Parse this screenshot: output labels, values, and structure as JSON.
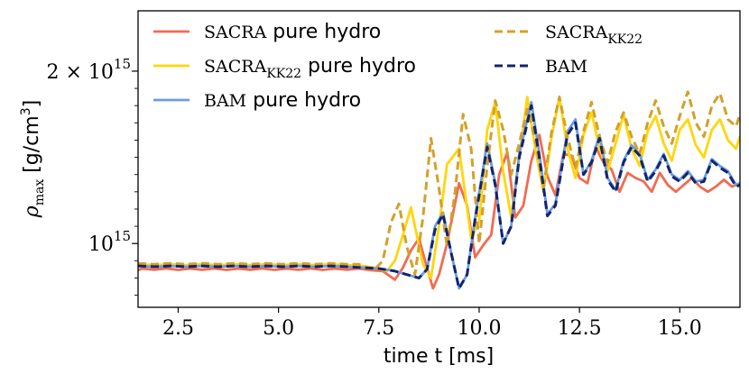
{
  "chart_data": {
    "type": "line",
    "xlabel": "time t [ms]",
    "ylabel": "ρmax [g/cm3]",
    "xlim": [
      1.5,
      16.5
    ],
    "ylim": [
      0.63,
      2.35
    ],
    "x_ticks": [
      {
        "value": 2.5,
        "label": "2.5"
      },
      {
        "value": 5.0,
        "label": "5.0"
      },
      {
        "value": 7.5,
        "label": "7.5"
      },
      {
        "value": 10.0,
        "label": "10.0"
      },
      {
        "value": 12.5,
        "label": "12.5"
      },
      {
        "value": 15.0,
        "label": "15.0"
      }
    ],
    "y_ticks": [
      {
        "value": 1.0,
        "base": "10",
        "exp": "15"
      },
      {
        "value": 2.0,
        "base": "2 × 10",
        "exp": "15"
      }
    ],
    "y_scale_unit": "10^15 g/cm^3",
    "grid": false,
    "legend_position": "top",
    "series": [
      {
        "name": "SACRA pure hydro",
        "style": "solid",
        "color": "#f26b50",
        "x": [
          1.5,
          1.6,
          1.9,
          2.2,
          2.5,
          2.8,
          3.1,
          3.4,
          3.7,
          4.0,
          4.3,
          4.6,
          4.9,
          5.2,
          5.5,
          5.8,
          6.1,
          6.4,
          6.7,
          7.0,
          7.3,
          7.6,
          7.9,
          8.1,
          8.3,
          8.5,
          8.7,
          8.85,
          9.0,
          9.2,
          9.5,
          9.7,
          9.9,
          10.1,
          10.3,
          10.5,
          10.7,
          10.9,
          11.1,
          11.3,
          11.5,
          11.7,
          11.9,
          12.1,
          12.3,
          12.5,
          12.7,
          12.9,
          13.1,
          13.3,
          13.5,
          13.7,
          13.9,
          14.1,
          14.3,
          14.5,
          14.7,
          14.9,
          15.1,
          15.3,
          15.5,
          15.7,
          15.9,
          16.1,
          16.3,
          16.5
        ],
        "y": [
          0.845,
          0.855,
          0.848,
          0.856,
          0.847,
          0.855,
          0.848,
          0.856,
          0.847,
          0.855,
          0.848,
          0.856,
          0.847,
          0.855,
          0.848,
          0.856,
          0.847,
          0.855,
          0.848,
          0.855,
          0.845,
          0.84,
          0.79,
          0.86,
          0.96,
          1.03,
          0.86,
          0.74,
          0.82,
          1.0,
          1.35,
          1.22,
          0.92,
          0.99,
          1.05,
          1.4,
          1.53,
          1.15,
          1.22,
          1.48,
          1.63,
          1.39,
          1.28,
          1.52,
          1.51,
          1.38,
          1.35,
          1.56,
          1.47,
          1.43,
          1.3,
          1.41,
          1.38,
          1.36,
          1.3,
          1.41,
          1.34,
          1.3,
          1.34,
          1.38,
          1.33,
          1.3,
          1.33,
          1.37,
          1.33,
          1.35
        ]
      },
      {
        "name": "SACRA_KK22 pure hydro",
        "style": "solid",
        "color": "#ffd60a",
        "x": [
          1.5,
          1.9,
          2.3,
          2.7,
          3.1,
          3.5,
          3.9,
          4.3,
          4.7,
          5.1,
          5.5,
          5.9,
          6.3,
          6.7,
          7.1,
          7.4,
          7.7,
          7.9,
          8.1,
          8.3,
          8.6,
          8.8,
          9.0,
          9.2,
          9.5,
          9.8,
          10.0,
          10.2,
          10.4,
          10.6,
          10.8,
          11.0,
          11.2,
          11.4,
          11.6,
          11.8,
          12.0,
          12.2,
          12.4,
          12.6,
          12.8,
          13.0,
          13.2,
          13.4,
          13.6,
          13.8,
          14.0,
          14.2,
          14.4,
          14.6,
          14.8,
          15.0,
          15.2,
          15.4,
          15.6,
          15.8,
          16.0,
          16.2,
          16.4,
          16.5
        ],
        "y": [
          0.88,
          0.875,
          0.88,
          0.875,
          0.88,
          0.875,
          0.88,
          0.875,
          0.88,
          0.875,
          0.88,
          0.875,
          0.88,
          0.875,
          0.87,
          0.86,
          0.84,
          0.9,
          1.05,
          1.21,
          0.88,
          0.8,
          1.1,
          1.46,
          1.55,
          1.03,
          1.13,
          1.66,
          1.82,
          1.42,
          1.15,
          1.5,
          1.85,
          1.55,
          1.3,
          1.61,
          1.85,
          1.55,
          1.38,
          1.63,
          1.76,
          1.55,
          1.42,
          1.58,
          1.75,
          1.55,
          1.45,
          1.65,
          1.74,
          1.58,
          1.48,
          1.66,
          1.72,
          1.57,
          1.5,
          1.66,
          1.72,
          1.6,
          1.55,
          1.62
        ]
      },
      {
        "name": "BAM pure hydro",
        "style": "solid",
        "color": "#6b9ce5",
        "x": [
          1.5,
          1.9,
          2.3,
          2.7,
          3.1,
          3.5,
          3.9,
          4.3,
          4.7,
          5.1,
          5.5,
          5.9,
          6.3,
          6.7,
          7.1,
          7.5,
          7.9,
          8.2,
          8.5,
          8.7,
          8.9,
          9.1,
          9.3,
          9.5,
          9.7,
          9.9,
          10.2,
          10.4,
          10.6,
          10.8,
          11.0,
          11.3,
          11.5,
          11.7,
          11.9,
          12.2,
          12.4,
          12.6,
          12.8,
          13.0,
          13.2,
          13.4,
          13.6,
          13.8,
          14.0,
          14.2,
          14.4,
          14.6,
          14.8,
          15.0,
          15.2,
          15.4,
          15.6,
          15.8,
          16.0,
          16.2,
          16.4,
          16.5
        ],
        "y": [
          0.87,
          0.865,
          0.87,
          0.865,
          0.87,
          0.865,
          0.87,
          0.865,
          0.87,
          0.865,
          0.87,
          0.865,
          0.87,
          0.865,
          0.86,
          0.855,
          0.84,
          0.82,
          0.8,
          0.85,
          1.1,
          1.18,
          0.95,
          0.74,
          0.82,
          1.15,
          1.58,
          1.35,
          1.0,
          1.1,
          1.52,
          1.82,
          1.52,
          1.17,
          1.23,
          1.65,
          1.72,
          1.4,
          1.48,
          1.63,
          1.38,
          1.31,
          1.48,
          1.57,
          1.52,
          1.37,
          1.43,
          1.52,
          1.4,
          1.37,
          1.42,
          1.36,
          1.37,
          1.49,
          1.45,
          1.42,
          1.34,
          1.35
        ]
      },
      {
        "name": "SACRA_KK22",
        "style": "dashed",
        "color": "#d4a02a",
        "x": [
          1.5,
          1.9,
          2.3,
          2.7,
          3.1,
          3.5,
          3.9,
          4.3,
          4.7,
          5.1,
          5.5,
          5.9,
          6.3,
          6.7,
          7.0,
          7.2,
          7.4,
          7.6,
          7.8,
          8.0,
          8.2,
          8.4,
          8.6,
          8.8,
          9.0,
          9.2,
          9.4,
          9.6,
          9.8,
          10.0,
          10.2,
          10.4,
          10.6,
          10.8,
          11.0,
          11.2,
          11.4,
          11.6,
          11.8,
          12.0,
          12.2,
          12.4,
          12.6,
          12.8,
          13.0,
          13.2,
          13.4,
          13.6,
          13.8,
          14.0,
          14.2,
          14.4,
          14.6,
          14.8,
          15.0,
          15.2,
          15.4,
          15.6,
          15.8,
          16.0,
          16.2,
          16.4,
          16.5
        ],
        "y": [
          0.885,
          0.88,
          0.885,
          0.88,
          0.885,
          0.88,
          0.885,
          0.88,
          0.885,
          0.88,
          0.885,
          0.88,
          0.885,
          0.88,
          0.88,
          0.86,
          0.85,
          0.9,
          1.12,
          1.23,
          0.98,
          0.82,
          1.15,
          1.61,
          1.32,
          0.98,
          1.3,
          1.75,
          1.55,
          1.0,
          1.45,
          1.83,
          1.66,
          1.4,
          1.58,
          1.78,
          1.6,
          1.32,
          1.64,
          1.85,
          1.62,
          1.44,
          1.65,
          1.82,
          1.62,
          1.47,
          1.65,
          1.76,
          1.62,
          1.52,
          1.7,
          1.83,
          1.68,
          1.58,
          1.74,
          1.88,
          1.7,
          1.62,
          1.8,
          1.87,
          1.72,
          1.68,
          1.75
        ]
      },
      {
        "name": "BAM",
        "style": "dashed",
        "color": "#14246b",
        "x": [
          1.5,
          1.9,
          2.3,
          2.7,
          3.1,
          3.5,
          3.9,
          4.3,
          4.7,
          5.1,
          5.5,
          5.9,
          6.3,
          6.7,
          7.1,
          7.5,
          7.9,
          8.2,
          8.5,
          8.7,
          8.9,
          9.1,
          9.3,
          9.5,
          9.7,
          9.9,
          10.2,
          10.4,
          10.6,
          10.8,
          11.0,
          11.3,
          11.5,
          11.7,
          11.9,
          12.2,
          12.4,
          12.6,
          12.8,
          13.0,
          13.2,
          13.4,
          13.6,
          13.8,
          14.0,
          14.2,
          14.4,
          14.6,
          14.8,
          15.0,
          15.2,
          15.4,
          15.6,
          15.8,
          16.0,
          16.2,
          16.4,
          16.5
        ],
        "y": [
          0.87,
          0.865,
          0.87,
          0.865,
          0.87,
          0.865,
          0.87,
          0.865,
          0.87,
          0.865,
          0.87,
          0.865,
          0.87,
          0.865,
          0.86,
          0.855,
          0.84,
          0.82,
          0.8,
          0.85,
          1.08,
          1.17,
          0.95,
          0.74,
          0.82,
          1.14,
          1.56,
          1.34,
          1.0,
          1.1,
          1.5,
          1.8,
          1.5,
          1.16,
          1.22,
          1.63,
          1.7,
          1.4,
          1.47,
          1.61,
          1.37,
          1.3,
          1.47,
          1.56,
          1.51,
          1.36,
          1.42,
          1.51,
          1.39,
          1.36,
          1.41,
          1.35,
          1.36,
          1.48,
          1.44,
          1.41,
          1.33,
          1.34
        ]
      }
    ],
    "legend": [
      {
        "series": 0,
        "sc": "SACRA",
        "sub": "",
        "suffix": " pure hydro"
      },
      {
        "series": 1,
        "sc": "SACRA",
        "sub": "KK22",
        "suffix": " pure hydro"
      },
      {
        "series": 2,
        "sc": "BAM",
        "sub": "",
        "suffix": " pure hydro"
      },
      {
        "series": 3,
        "sc": "SACRA",
        "sub": "KK22",
        "suffix": ""
      },
      {
        "series": 4,
        "sc": "BAM",
        "sub": "",
        "suffix": ""
      }
    ]
  }
}
